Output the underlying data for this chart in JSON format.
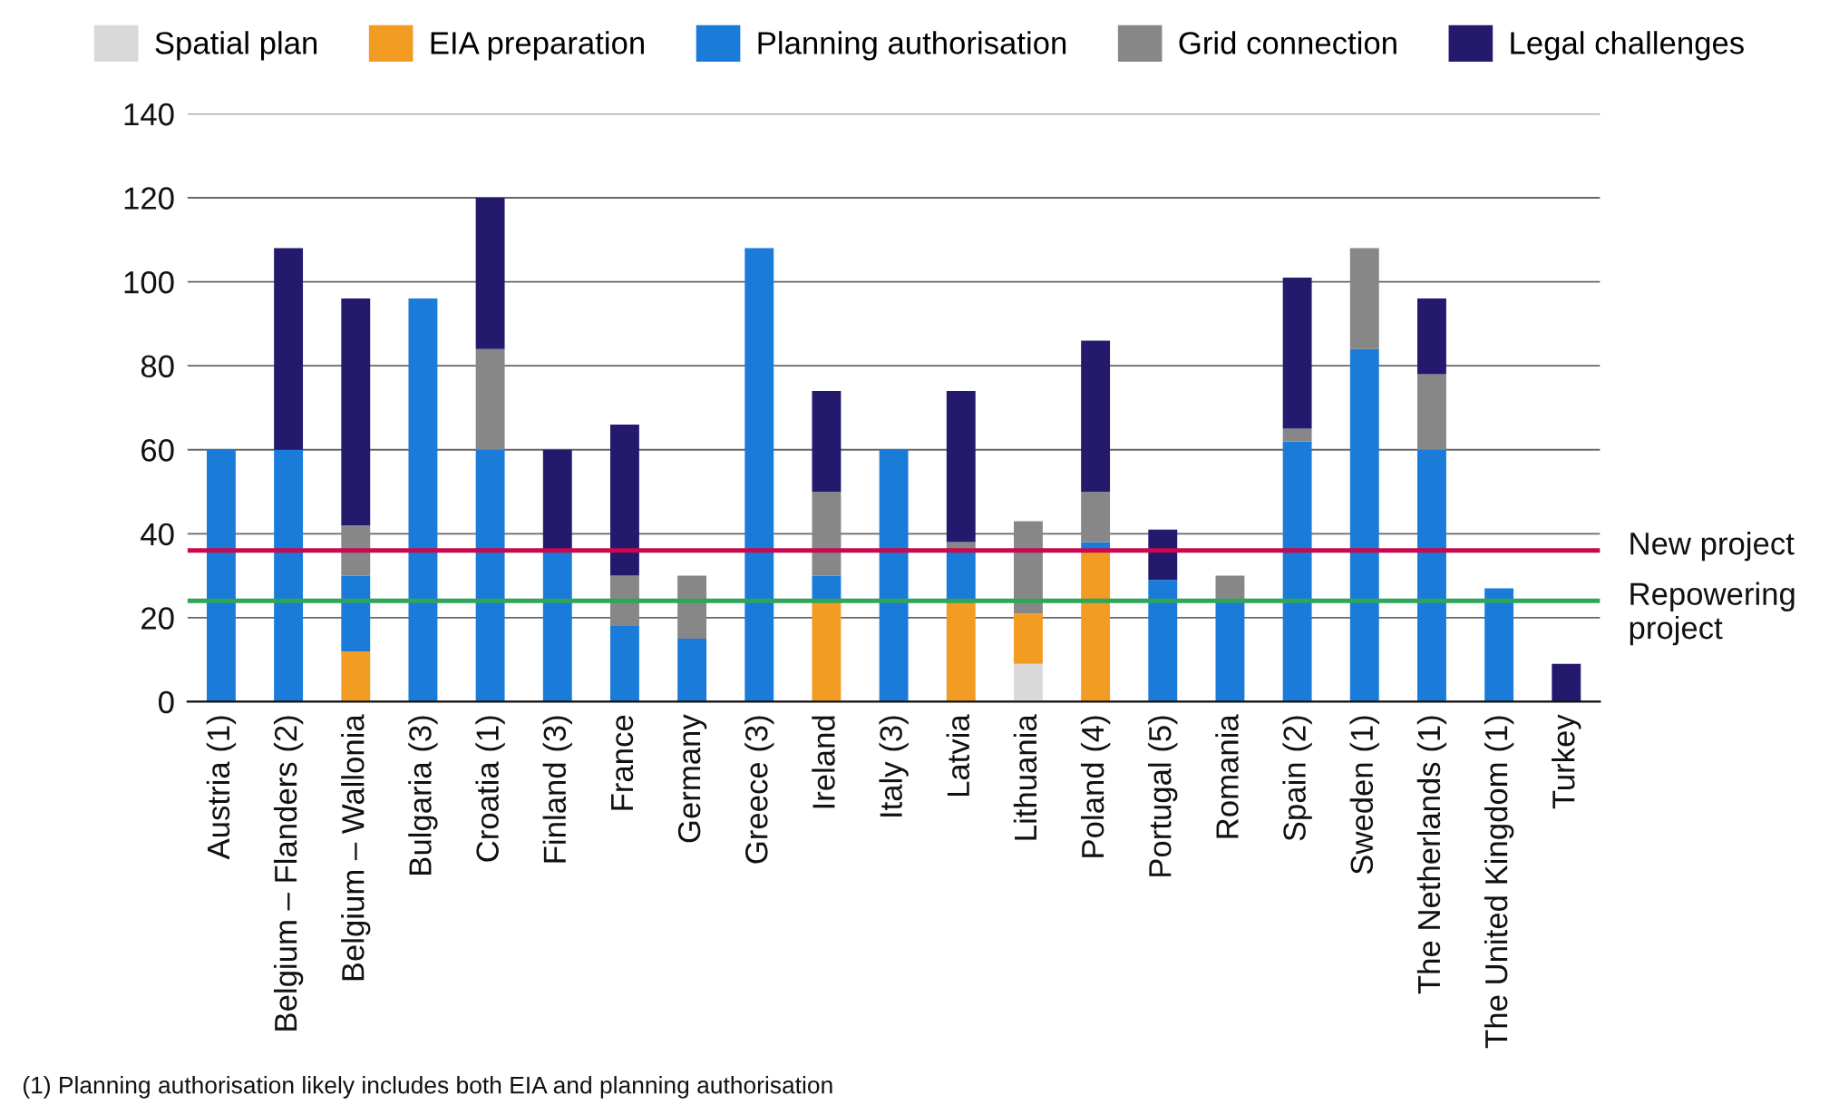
{
  "chart_data": {
    "type": "bar",
    "stacked": true,
    "categories": [
      "Austria (1)",
      "Belgium – Flanders (2)",
      "Belgium – Wallonia",
      "Bulgaria (3)",
      "Croatia (1)",
      "Finland (3)",
      "France",
      "Germany",
      "Greece (3)",
      "Ireland",
      "Italy (3)",
      "Latvia",
      "Lithuania",
      "Poland (4)",
      "Portugal (5)",
      "Romania",
      "Spain (2)",
      "Sweden (1)",
      "The Netherlands (1)",
      "The United Kingdom (1)",
      "Turkey"
    ],
    "series": [
      {
        "name": "Spatial plan",
        "color": "#d9d9d9",
        "values": [
          null,
          null,
          null,
          null,
          null,
          null,
          null,
          null,
          null,
          null,
          null,
          null,
          9,
          null,
          null,
          null,
          null,
          null,
          null,
          null,
          null
        ]
      },
      {
        "name": "EIA preparation",
        "color": "#f39c24",
        "values": [
          null,
          null,
          12,
          null,
          null,
          null,
          null,
          null,
          null,
          24,
          null,
          24,
          12,
          36,
          null,
          null,
          null,
          null,
          null,
          null,
          null
        ]
      },
      {
        "name": "Planning authorisation",
        "color": "#1a7bd9",
        "values": [
          60,
          60,
          18,
          96,
          60,
          36,
          18,
          15,
          108,
          6,
          60,
          12,
          null,
          2,
          29,
          24,
          62,
          84,
          60,
          27,
          null
        ]
      },
      {
        "name": "Grid connection",
        "color": "#878787",
        "values": [
          null,
          null,
          12,
          null,
          24,
          null,
          12,
          15,
          null,
          20,
          null,
          2,
          22,
          12,
          null,
          6,
          3,
          24,
          18,
          null,
          null
        ]
      },
      {
        "name": "Legal challenges",
        "color": "#231a6e",
        "values": [
          null,
          48,
          54,
          null,
          36,
          24,
          36,
          null,
          null,
          24,
          null,
          36,
          null,
          36,
          12,
          null,
          36,
          null,
          18,
          null,
          9
        ]
      }
    ],
    "ylim": [
      0,
      140
    ],
    "yticks": [
      0,
      20,
      40,
      60,
      80,
      100,
      120,
      140
    ],
    "grid": "y",
    "legend": "top",
    "ref_lines": [
      {
        "axis": "y",
        "value": 36,
        "label": "New project",
        "color": "#c8094f"
      },
      {
        "axis": "y",
        "value": 24,
        "label": "Repowering project",
        "color": "#2ea55a"
      }
    ],
    "annotations": [
      "(1) Planning authorisation likely includes both EIA and planning authorisation"
    ]
  }
}
